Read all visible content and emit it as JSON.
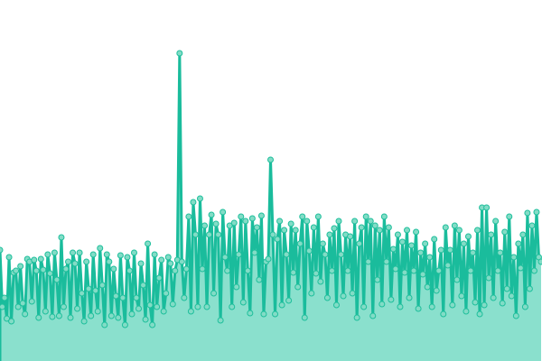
{
  "chart_data": {
    "type": "area",
    "title": "",
    "xlabel": "",
    "ylabel": "",
    "ylim": [
      0,
      400
    ],
    "grid": false,
    "legend": "none",
    "markers": true,
    "colors": {
      "line": "#1abc9c",
      "fill": "#8ae0cd",
      "marker_fill": "#82dcc6",
      "marker_stroke": "#1fbf9c"
    },
    "series": [
      {
        "values": [
          123,
          60,
          70,
          47,
          115,
          44,
          98,
          100,
          60,
          105,
          64,
          52,
          113,
          110,
          66,
          112,
          100,
          48,
          113,
          101,
          55,
          118,
          97,
          49,
          120,
          90,
          50,
          137,
          60,
          102,
          110,
          48,
          120,
          108,
          58,
          120,
          75,
          44,
          110,
          80,
          50,
          118,
          78,
          55,
          125,
          84,
          40,
          118,
          110,
          50,
          102,
          72,
          48,
          117,
          70,
          40,
          115,
          100,
          52,
          120,
          70,
          58,
          108,
          84,
          46,
          130,
          62,
          40,
          118,
          60,
          92,
          112,
          55,
          75,
          115,
          108,
          63,
          100,
          112,
          341,
          110,
          70,
          102,
          160,
          55,
          176,
          140,
          60,
          180,
          102,
          150,
          60,
          140,
          162,
          75,
          152,
          140,
          45,
          165,
          115,
          100,
          150,
          60,
          153,
          82,
          118,
          160,
          65,
          155,
          100,
          53,
          158,
          120,
          148,
          90,
          161,
          52,
          110,
          113,
          223,
          140,
          52,
          135,
          155,
          62,
          145,
          118,
          67,
          152,
          98,
          145,
          82,
          130,
          160,
          48,
          155,
          122,
          75,
          148,
          97,
          160,
          88,
          130,
          118,
          70,
          140,
          100,
          147,
          62,
          155,
          118,
          72,
          140,
          100,
          138,
          75,
          155,
          48,
          130,
          148,
          60,
          160,
          110,
          155,
          50,
          150,
          90,
          145,
          63,
          160,
          110,
          148,
          68,
          124,
          102,
          140,
          60,
          132,
          98,
          145,
          70,
          128,
          100,
          143,
          58,
          120,
          96,
          130,
          82,
          115,
          60,
          135,
          78,
          100,
          123,
          52,
          148,
          106,
          123,
          62,
          150,
          90,
          145,
          72,
          130,
          55,
          138,
          100,
          120,
          65,
          145,
          52,
          170,
          62,
          170,
          92,
          140,
          70,
          155,
          100,
          120,
          64,
          143,
          80,
          160,
          72,
          115,
          50,
          130,
          103,
          140,
          60,
          164,
          80,
          150,
          100,
          165,
          115,
          110
        ]
      }
    ]
  }
}
